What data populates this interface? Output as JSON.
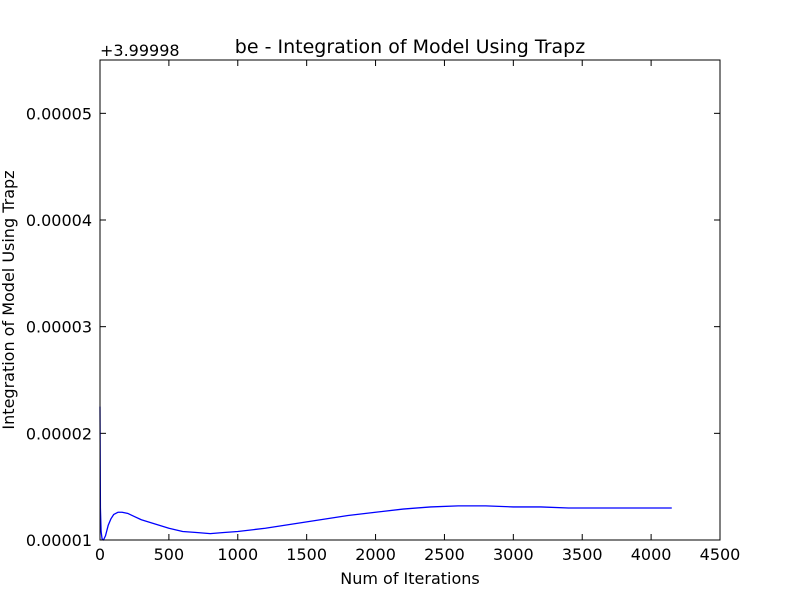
{
  "chart_data": {
    "type": "line",
    "title": "be - Integration of Model Using Trapz",
    "xlabel": "Num of Iterations",
    "ylabel": "Integration of Model Using Trapz",
    "y_offset_label": "+3.99998",
    "xlim": [
      0,
      4500
    ],
    "ylim": [
      1e-05,
      5.5e-05
    ],
    "x_ticks": [
      0,
      500,
      1000,
      1500,
      2000,
      2500,
      3000,
      3500,
      4000,
      4500
    ],
    "x_tick_labels": [
      "0",
      "500",
      "1000",
      "1500",
      "2000",
      "2500",
      "3000",
      "3500",
      "4000",
      "4500"
    ],
    "y_ticks": [
      1e-05,
      2e-05,
      3e-05,
      4e-05,
      5e-05
    ],
    "y_tick_labels": [
      "0.00001",
      "0.00002",
      "0.00003",
      "0.00004",
      "0.00005"
    ],
    "grid": false,
    "legend": "none",
    "series": [
      {
        "color": "#0000ff",
        "x": [
          0,
          3,
          8,
          15,
          25,
          40,
          60,
          80,
          100,
          130,
          160,
          200,
          250,
          300,
          400,
          500,
          600,
          700,
          800,
          900,
          1000,
          1200,
          1400,
          1600,
          1800,
          2000,
          2200,
          2400,
          2600,
          2800,
          3000,
          3200,
          3400,
          3600,
          3800,
          4000,
          4150
        ],
        "y": [
          2.25e-05,
          1.3e-05,
          1.08e-05,
          1.01e-05,
          1e-05,
          1.04e-05,
          1.14e-05,
          1.2e-05,
          1.24e-05,
          1.26e-05,
          1.26e-05,
          1.25e-05,
          1.22e-05,
          1.19e-05,
          1.15e-05,
          1.11e-05,
          1.08e-05,
          1.07e-05,
          1.06e-05,
          1.07e-05,
          1.08e-05,
          1.11e-05,
          1.15e-05,
          1.19e-05,
          1.23e-05,
          1.26e-05,
          1.29e-05,
          1.31e-05,
          1.32e-05,
          1.32e-05,
          1.31e-05,
          1.31e-05,
          1.3e-05,
          1.3e-05,
          1.3e-05,
          1.3e-05,
          1.3e-05
        ]
      }
    ]
  }
}
